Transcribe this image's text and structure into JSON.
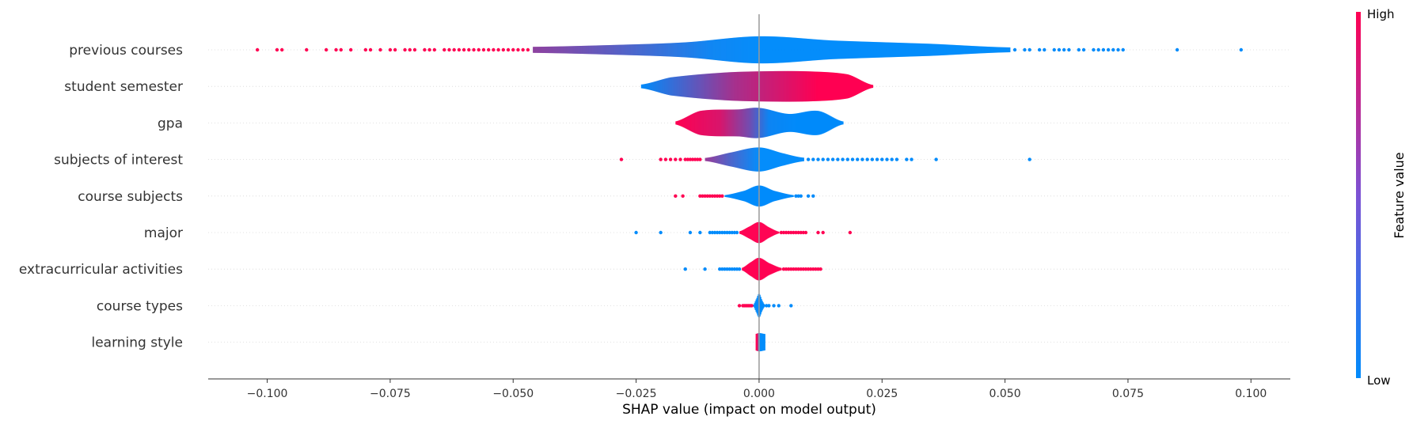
{
  "chart_data": {
    "type": "violin",
    "xlabel": "SHAP value (impact on model output)",
    "xlim": [
      -0.112,
      0.108
    ],
    "xticks": [
      -0.1,
      -0.075,
      -0.05,
      -0.025,
      0.0,
      0.025,
      0.05,
      0.075,
      0.1
    ],
    "xtick_labels": [
      "−0.100",
      "−0.075",
      "−0.050",
      "−0.025",
      "0.000",
      "0.025",
      "0.050",
      "0.075",
      "0.100"
    ],
    "colors": {
      "low": "#008bfb",
      "high": "#ff0052",
      "zero_line": "#999999",
      "axis": "#333333"
    },
    "colorbar": {
      "title": "Feature value",
      "high_label": "High",
      "low_label": "Low"
    },
    "features": [
      {
        "name": "previous courses",
        "profile": [
          [
            -0.046,
            0.2
          ],
          [
            -0.03,
            0.32
          ],
          [
            -0.015,
            0.5
          ],
          [
            0.0,
            0.9
          ],
          [
            0.015,
            0.62
          ],
          [
            0.035,
            0.4
          ],
          [
            0.051,
            0.16
          ]
        ],
        "color_profile": [
          [
            -0.046,
            0.55
          ],
          [
            -0.03,
            0.35
          ],
          [
            -0.01,
            0.05
          ],
          [
            0.0,
            0.0
          ],
          [
            0.03,
            0.0
          ],
          [
            0.051,
            0.0
          ]
        ],
        "low_points": [
          0.052,
          0.054,
          0.055,
          0.057,
          0.058,
          0.06,
          0.061,
          0.062,
          0.063,
          0.065,
          0.066,
          0.068,
          0.069,
          0.07,
          0.071,
          0.072,
          0.073,
          0.074,
          0.085,
          0.098
        ],
        "high_points": [
          -0.102,
          -0.098,
          -0.097,
          -0.092,
          -0.088,
          -0.086,
          -0.085,
          -0.083,
          -0.08,
          -0.079,
          -0.077,
          -0.075,
          -0.074,
          -0.072,
          -0.071,
          -0.07,
          -0.068,
          -0.067,
          -0.066,
          -0.064,
          -0.063,
          -0.062,
          -0.061,
          -0.06,
          -0.059,
          -0.058,
          -0.057,
          -0.056,
          -0.055,
          -0.054,
          -0.053,
          -0.052,
          -0.051,
          -0.05,
          -0.049,
          -0.048,
          -0.047
        ]
      },
      {
        "name": "student semester",
        "profile": [
          [
            -0.024,
            0.12
          ],
          [
            -0.018,
            0.6
          ],
          [
            -0.008,
            0.9
          ],
          [
            0.0,
            1.0
          ],
          [
            0.01,
            1.0
          ],
          [
            0.018,
            0.8
          ],
          [
            0.023,
            0.1
          ]
        ],
        "color_profile": [
          [
            -0.024,
            0.0
          ],
          [
            -0.015,
            0.3
          ],
          [
            -0.005,
            0.65
          ],
          [
            0.005,
            0.85
          ],
          [
            0.012,
            1.0
          ],
          [
            0.023,
            1.0
          ]
        ],
        "low_points": [],
        "high_points": []
      },
      {
        "name": "gpa",
        "profile": [
          [
            -0.017,
            0.1
          ],
          [
            -0.012,
            0.8
          ],
          [
            -0.004,
            0.9
          ],
          [
            0.0,
            1.0
          ],
          [
            0.006,
            0.6
          ],
          [
            0.012,
            0.8
          ],
          [
            0.017,
            0.1
          ]
        ],
        "color_profile": [
          [
            -0.017,
            1.0
          ],
          [
            -0.008,
            0.85
          ],
          [
            -0.002,
            0.45
          ],
          [
            0.002,
            0.05
          ],
          [
            0.008,
            0.0
          ],
          [
            0.017,
            0.0
          ]
        ],
        "low_points": [],
        "high_points": []
      },
      {
        "name": "subjects of interest",
        "profile": [
          [
            -0.011,
            0.1
          ],
          [
            -0.006,
            0.45
          ],
          [
            0.0,
            0.8
          ],
          [
            0.005,
            0.4
          ],
          [
            0.009,
            0.12
          ]
        ],
        "color_profile": [
          [
            -0.011,
            0.6
          ],
          [
            -0.006,
            0.3
          ],
          [
            0.0,
            0.0
          ],
          [
            0.009,
            0.0
          ]
        ],
        "low_points": [
          0.01,
          0.011,
          0.012,
          0.013,
          0.014,
          0.015,
          0.016,
          0.017,
          0.018,
          0.019,
          0.02,
          0.021,
          0.022,
          0.023,
          0.024,
          0.025,
          0.026,
          0.027,
          0.028,
          0.03,
          0.031,
          0.036,
          0.055
        ],
        "high_points": [
          -0.028,
          -0.02,
          -0.019,
          -0.018,
          -0.017,
          -0.016,
          -0.015,
          -0.0145,
          -0.014,
          -0.0135,
          -0.013,
          -0.0125,
          -0.012
        ]
      },
      {
        "name": "course subjects",
        "profile": [
          [
            -0.007,
            0.06
          ],
          [
            -0.003,
            0.35
          ],
          [
            0.0,
            0.7
          ],
          [
            0.003,
            0.35
          ],
          [
            0.007,
            0.06
          ]
        ],
        "color_profile": [
          [
            -0.007,
            0.0
          ],
          [
            0.007,
            0.0
          ]
        ],
        "low_points": [
          0.0075,
          0.008,
          0.0085,
          0.01,
          0.011
        ],
        "high_points": [
          -0.017,
          -0.0155,
          -0.012,
          -0.0115,
          -0.011,
          -0.0105,
          -0.01,
          -0.0095,
          -0.009,
          -0.0085,
          -0.008,
          -0.0075
        ]
      },
      {
        "name": "major",
        "profile": [
          [
            -0.004,
            0.08
          ],
          [
            -0.002,
            0.4
          ],
          [
            0.0,
            0.7
          ],
          [
            0.002,
            0.35
          ],
          [
            0.004,
            0.06
          ]
        ],
        "color_profile": [
          [
            -0.004,
            1.0
          ],
          [
            0.004,
            1.0
          ]
        ],
        "low_points": [
          -0.025,
          -0.02,
          -0.014,
          -0.012,
          -0.01,
          -0.0095,
          -0.009,
          -0.0085,
          -0.008,
          -0.0075,
          -0.007,
          -0.0065,
          -0.006,
          -0.0055,
          -0.005,
          -0.0045
        ],
        "high_points": [
          0.0045,
          0.005,
          0.0055,
          0.006,
          0.0065,
          0.007,
          0.0075,
          0.008,
          0.0085,
          0.009,
          0.0095,
          0.012,
          0.013,
          0.0185
        ]
      },
      {
        "name": "extracurricular activities",
        "profile": [
          [
            -0.0035,
            0.08
          ],
          [
            -0.0015,
            0.5
          ],
          [
            0.0,
            0.75
          ],
          [
            0.002,
            0.4
          ],
          [
            0.0045,
            0.08
          ]
        ],
        "color_profile": [
          [
            -0.0035,
            1.0
          ],
          [
            0.0045,
            1.0
          ]
        ],
        "low_points": [
          -0.015,
          -0.011,
          -0.008,
          -0.0075,
          -0.007,
          -0.0065,
          -0.006,
          -0.0055,
          -0.005,
          -0.0045,
          -0.004
        ],
        "high_points": [
          0.005,
          0.0055,
          0.006,
          0.0065,
          0.007,
          0.0075,
          0.008,
          0.0085,
          0.009,
          0.0095,
          0.01,
          0.0105,
          0.011,
          0.0115,
          0.012,
          0.0125
        ]
      },
      {
        "name": "course types",
        "profile": [
          [
            -0.0012,
            0.04
          ],
          [
            -0.0005,
            0.5
          ],
          [
            0.0,
            0.8
          ],
          [
            0.0006,
            0.35
          ],
          [
            0.0012,
            0.04
          ]
        ],
        "color_profile": [
          [
            -0.0012,
            0.0
          ],
          [
            0.0012,
            0.0
          ]
        ],
        "low_points": [
          0.0015,
          0.002,
          0.003,
          0.004,
          0.0065
        ],
        "high_points": [
          -0.004,
          -0.0033,
          -0.003,
          -0.0027,
          -0.0024,
          -0.0021,
          -0.0018,
          -0.0015
        ]
      },
      {
        "name": "learning style",
        "profile": [
          [
            -0.0007,
            0.55
          ],
          [
            -0.0002,
            0.6
          ],
          [
            0.0003,
            0.6
          ],
          [
            0.0011,
            0.55
          ]
        ],
        "color_profile": [
          [
            -0.0007,
            1.0
          ],
          [
            -0.0003,
            1.0
          ],
          [
            -0.0001,
            0.0
          ],
          [
            0.0011,
            0.0
          ]
        ],
        "low_points": [],
        "high_points": []
      }
    ]
  }
}
